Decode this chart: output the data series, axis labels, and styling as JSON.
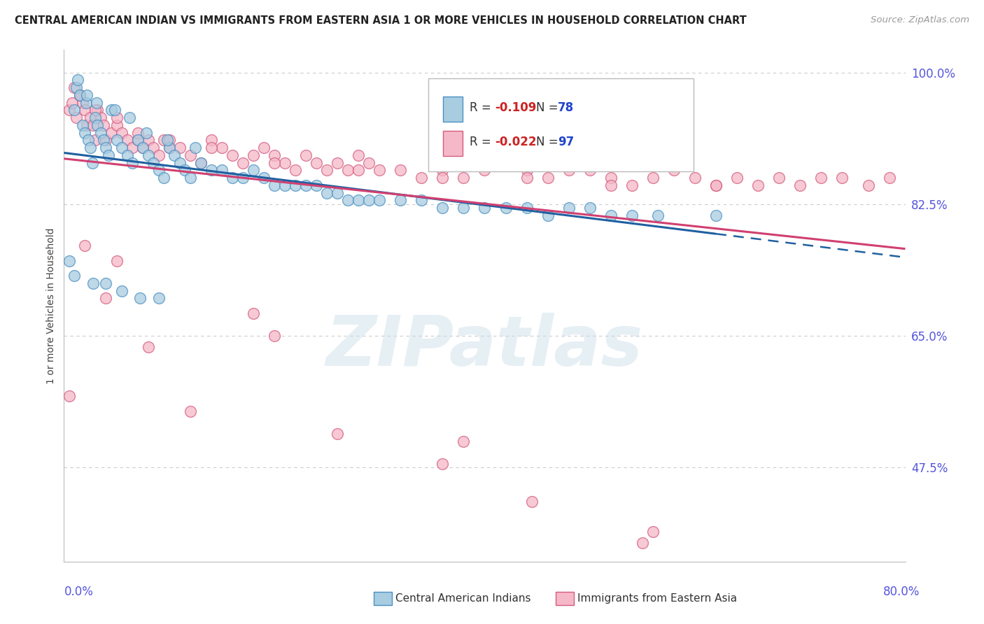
{
  "title": "CENTRAL AMERICAN INDIAN VS IMMIGRANTS FROM EASTERN ASIA 1 OR MORE VEHICLES IN HOUSEHOLD CORRELATION CHART",
  "source": "Source: ZipAtlas.com",
  "ylabel_label": "1 or more Vehicles in Household",
  "legend_blue_r_val": "-0.109",
  "legend_blue_n_val": "78",
  "legend_pink_r_val": "-0.022",
  "legend_pink_n_val": "97",
  "legend_label_blue": "Central American Indians",
  "legend_label_pink": "Immigrants from Eastern Asia",
  "blue_fill": "#a8cce0",
  "pink_fill": "#f5b8c8",
  "blue_edge": "#4a90c4",
  "pink_edge": "#d45c7e",
  "blue_line": "#2060a0",
  "pink_line": "#d04070",
  "title_color": "#222222",
  "source_color": "#999999",
  "axis_color": "#5555dd",
  "grid_color": "#cccccc",
  "bg_color": "#ffffff",
  "xmin": 0.0,
  "xmax": 80.0,
  "ymin": 35.0,
  "ymax": 103.0,
  "yticks": [
    100.0,
    82.5,
    65.0,
    47.5
  ],
  "blue_x": [
    1.0,
    1.2,
    1.5,
    1.8,
    2.0,
    2.1,
    2.3,
    2.5,
    2.7,
    3.0,
    3.2,
    3.5,
    3.8,
    4.0,
    4.2,
    4.5,
    5.0,
    5.5,
    6.0,
    6.5,
    7.0,
    7.5,
    8.0,
    8.5,
    9.0,
    9.5,
    10.0,
    10.5,
    11.0,
    11.5,
    12.0,
    13.0,
    14.0,
    15.0,
    16.0,
    17.0,
    18.0,
    19.0,
    20.0,
    21.0,
    22.0,
    23.0,
    24.0,
    25.0,
    26.0,
    27.0,
    28.0,
    29.0,
    30.0,
    32.0,
    34.0,
    36.0,
    38.0,
    40.0,
    42.0,
    44.0,
    46.0,
    48.0,
    50.0,
    52.0,
    54.0,
    56.5,
    62.0,
    1.3,
    2.2,
    3.1,
    4.8,
    6.2,
    7.8,
    9.8,
    12.5,
    0.5,
    1.0,
    2.8,
    4.0,
    5.5,
    7.2,
    9.0
  ],
  "blue_y": [
    95.0,
    98.0,
    97.0,
    93.0,
    92.0,
    96.0,
    91.0,
    90.0,
    88.0,
    94.0,
    93.0,
    92.0,
    91.0,
    90.0,
    89.0,
    95.0,
    91.0,
    90.0,
    89.0,
    88.0,
    91.0,
    90.0,
    89.0,
    88.0,
    87.0,
    86.0,
    90.0,
    89.0,
    88.0,
    87.0,
    86.0,
    88.0,
    87.0,
    87.0,
    86.0,
    86.0,
    87.0,
    86.0,
    85.0,
    85.0,
    85.0,
    85.0,
    85.0,
    84.0,
    84.0,
    83.0,
    83.0,
    83.0,
    83.0,
    83.0,
    83.0,
    82.0,
    82.0,
    82.0,
    82.0,
    82.0,
    81.0,
    82.0,
    82.0,
    81.0,
    81.0,
    81.0,
    81.0,
    99.0,
    97.0,
    96.0,
    95.0,
    94.0,
    92.0,
    91.0,
    90.0,
    75.0,
    73.0,
    72.0,
    72.0,
    71.0,
    70.0,
    70.0
  ],
  "pink_x": [
    0.5,
    0.8,
    1.0,
    1.2,
    1.5,
    1.8,
    2.0,
    2.2,
    2.5,
    2.8,
    3.0,
    3.2,
    3.5,
    3.8,
    4.0,
    4.5,
    5.0,
    5.5,
    6.0,
    6.5,
    7.0,
    7.5,
    8.0,
    8.5,
    9.0,
    9.5,
    10.0,
    11.0,
    12.0,
    13.0,
    14.0,
    15.0,
    16.0,
    17.0,
    18.0,
    19.0,
    20.0,
    21.0,
    22.0,
    23.0,
    24.0,
    25.0,
    26.0,
    27.0,
    28.0,
    29.0,
    30.0,
    32.0,
    34.0,
    36.0,
    38.0,
    40.0,
    42.0,
    44.0,
    46.0,
    48.0,
    50.0,
    52.0,
    54.0,
    56.0,
    58.0,
    60.0,
    62.0,
    64.0,
    66.0,
    68.0,
    70.0,
    72.0,
    74.0,
    76.5,
    78.5,
    1.5,
    3.0,
    5.0,
    7.0,
    10.0,
    14.0,
    20.0,
    28.0,
    36.0,
    44.0,
    52.0,
    62.0,
    0.5,
    2.0,
    4.0,
    8.0,
    12.0,
    18.0,
    26.0,
    36.0,
    44.5,
    55.0,
    5.0,
    20.0,
    38.0,
    56.0
  ],
  "pink_y": [
    95.0,
    96.0,
    98.0,
    94.0,
    97.0,
    96.0,
    95.0,
    93.0,
    94.0,
    93.0,
    91.0,
    95.0,
    94.0,
    93.0,
    91.0,
    92.0,
    93.0,
    92.0,
    91.0,
    90.0,
    91.0,
    90.0,
    91.0,
    90.0,
    89.0,
    91.0,
    90.0,
    90.0,
    89.0,
    88.0,
    91.0,
    90.0,
    89.0,
    88.0,
    89.0,
    90.0,
    89.0,
    88.0,
    87.0,
    89.0,
    88.0,
    87.0,
    88.0,
    87.0,
    89.0,
    88.0,
    87.0,
    87.0,
    86.0,
    87.0,
    86.0,
    87.0,
    88.0,
    87.0,
    86.0,
    87.0,
    87.0,
    86.0,
    85.0,
    86.0,
    87.0,
    86.0,
    85.0,
    86.0,
    85.0,
    86.0,
    85.0,
    86.0,
    86.0,
    85.0,
    86.0,
    97.0,
    95.0,
    94.0,
    92.0,
    91.0,
    90.0,
    88.0,
    87.0,
    86.0,
    86.0,
    85.0,
    85.0,
    57.0,
    77.0,
    70.0,
    63.5,
    55.0,
    68.0,
    52.0,
    48.0,
    43.0,
    37.5,
    75.0,
    65.0,
    51.0,
    39.0
  ]
}
